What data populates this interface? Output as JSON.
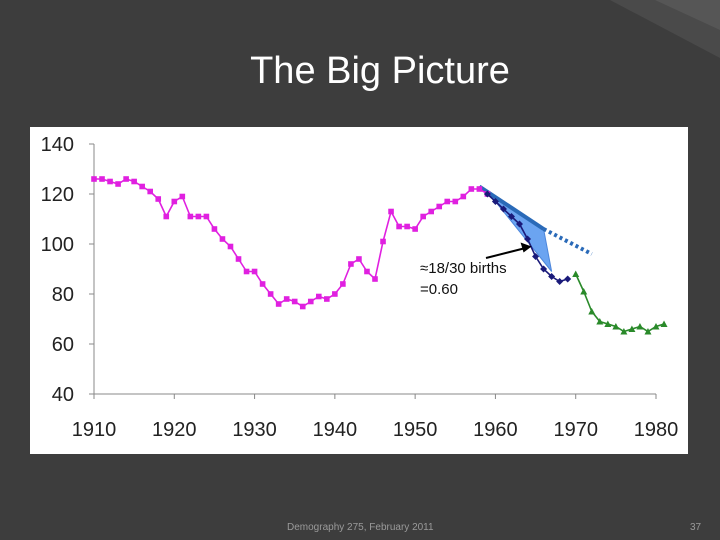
{
  "slide": {
    "title": "The Big Picture",
    "footer_left": "Demography 275, February 2011",
    "page_number": "37"
  },
  "colors": {
    "background": "#3d3d3d",
    "magenta_series": "#e020e0",
    "navy_series": "#1a1a7a",
    "green_series": "#2a8a2a",
    "trend_fill": "#5b9bf0",
    "trend_dotted": "#2a6ab8"
  },
  "chart_data": {
    "type": "line",
    "title": "",
    "xlabel": "",
    "ylabel": "",
    "xlim": [
      1910,
      1980
    ],
    "ylim": [
      40,
      140
    ],
    "x_ticks": [
      "1910",
      "1920",
      "1930",
      "1940",
      "1950",
      "1960",
      "1970",
      "1980"
    ],
    "y_ticks": [
      "140",
      "120",
      "100",
      "80",
      "60",
      "40"
    ],
    "grid": false,
    "legend": "none",
    "series": [
      {
        "color": "#e020e0",
        "marker": "square",
        "points": [
          [
            1910,
            126
          ],
          [
            1911,
            126
          ],
          [
            1912,
            125
          ],
          [
            1913,
            124
          ],
          [
            1914,
            126
          ],
          [
            1915,
            125
          ],
          [
            1916,
            123
          ],
          [
            1917,
            121
          ],
          [
            1918,
            118
          ],
          [
            1919,
            111
          ],
          [
            1920,
            117
          ],
          [
            1921,
            119
          ],
          [
            1922,
            111
          ],
          [
            1923,
            111
          ],
          [
            1924,
            111
          ],
          [
            1925,
            106
          ],
          [
            1926,
            102
          ],
          [
            1927,
            99
          ],
          [
            1928,
            94
          ],
          [
            1929,
            89
          ],
          [
            1930,
            89
          ],
          [
            1931,
            84
          ],
          [
            1932,
            80
          ],
          [
            1933,
            76
          ],
          [
            1934,
            78
          ],
          [
            1935,
            77
          ],
          [
            1936,
            75
          ],
          [
            1937,
            77
          ],
          [
            1938,
            79
          ],
          [
            1939,
            78
          ],
          [
            1940,
            80
          ],
          [
            1941,
            84
          ],
          [
            1942,
            92
          ],
          [
            1943,
            94
          ],
          [
            1944,
            89
          ],
          [
            1945,
            86
          ],
          [
            1946,
            101
          ],
          [
            1947,
            113
          ],
          [
            1948,
            107
          ],
          [
            1949,
            107
          ],
          [
            1950,
            106
          ],
          [
            1951,
            111
          ],
          [
            1952,
            113
          ],
          [
            1953,
            115
          ],
          [
            1954,
            117
          ],
          [
            1955,
            117
          ],
          [
            1956,
            119
          ],
          [
            1957,
            122
          ],
          [
            1958,
            122
          ],
          [
            1959,
            120
          ]
        ]
      },
      {
        "color": "#1a1a7a",
        "marker": "diamond",
        "points": [
          [
            1959,
            120
          ],
          [
            1960,
            117
          ],
          [
            1961,
            114
          ],
          [
            1962,
            111
          ],
          [
            1963,
            108
          ],
          [
            1964,
            102
          ],
          [
            1965,
            95
          ],
          [
            1966,
            90
          ],
          [
            1967,
            87
          ],
          [
            1968,
            85
          ],
          [
            1969,
            86
          ]
        ]
      },
      {
        "color": "#2a8a2a",
        "marker": "triangle",
        "points": [
          [
            1970,
            88
          ],
          [
            1971,
            81
          ],
          [
            1972,
            73
          ],
          [
            1973,
            69
          ],
          [
            1974,
            68
          ],
          [
            1975,
            67
          ],
          [
            1976,
            65
          ],
          [
            1977,
            66
          ],
          [
            1978,
            67
          ],
          [
            1979,
            65
          ],
          [
            1980,
            67
          ],
          [
            1981,
            68
          ]
        ]
      }
    ],
    "trend": {
      "solid_line": [
        [
          1958,
          123
        ],
        [
          1966,
          106
        ]
      ],
      "dotted_line": [
        [
          1966,
          106
        ],
        [
          1972,
          96
        ]
      ],
      "shaded_region": [
        [
          1958,
          123
        ],
        [
          1966,
          106
        ],
        [
          1967,
          89
        ],
        [
          1960,
          117
        ]
      ]
    },
    "annotation": {
      "lines": [
        "≈18/30 births",
        "=0.60"
      ],
      "arrow_target": [
        1964.5,
        99
      ]
    }
  }
}
